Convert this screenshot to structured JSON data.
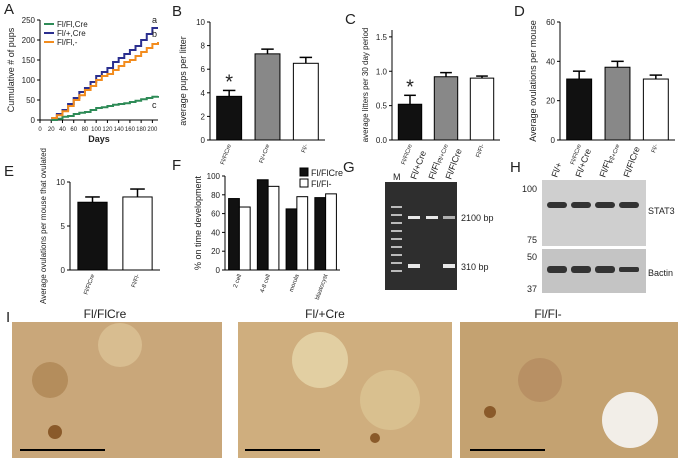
{
  "chart_data": [
    {
      "type": "line",
      "panel_label": "A",
      "x_label": "Days",
      "y_label": "Cumulative # of pups",
      "x": [
        20,
        30,
        40,
        50,
        60,
        70,
        80,
        90,
        100,
        110,
        120,
        130,
        140,
        150,
        160,
        170,
        180,
        190,
        200,
        210
      ],
      "series": [
        {
          "name": "Fl/Fl,Cre",
          "color": "#2e8b57",
          "values": [
            0,
            3,
            8,
            10,
            15,
            18,
            20,
            25,
            30,
            32,
            35,
            38,
            40,
            42,
            45,
            48,
            52,
            55,
            58,
            60
          ]
        },
        {
          "name": "Fl/+,Cre",
          "color": "#2b2f8f",
          "values": [
            5,
            15,
            25,
            40,
            55,
            70,
            80,
            95,
            110,
            120,
            130,
            145,
            155,
            165,
            175,
            185,
            200,
            215,
            230,
            230
          ]
        },
        {
          "name": "Fl/Fl,-",
          "color": "#f28c1e",
          "values": [
            5,
            12,
            22,
            35,
            50,
            62,
            75,
            85,
            100,
            110,
            115,
            125,
            135,
            145,
            150,
            160,
            170,
            180,
            190,
            195
          ]
        }
      ],
      "annotations": [
        "a",
        "b",
        "c"
      ],
      "xlim": [
        0,
        210
      ],
      "xticks": [
        0,
        20,
        40,
        60,
        80,
        100,
        120,
        140,
        160,
        180,
        200
      ],
      "ylim": [
        0,
        250
      ],
      "yticks": [
        0,
        50,
        100,
        150,
        200,
        250
      ],
      "legend": "upper left"
    },
    {
      "type": "bar",
      "panel_label": "B",
      "y_label": "average pups per litter",
      "categories": [
        "Fl/FlCre",
        "Fl/+Cre",
        "Fl/-"
      ],
      "values": [
        3.7,
        7.3,
        6.5
      ],
      "errors": [
        0.5,
        0.4,
        0.5
      ],
      "colors": [
        "#111111",
        "#888888",
        "#ffffff"
      ],
      "annotation": "*",
      "ylim": [
        0,
        10
      ],
      "yticks": [
        0,
        2,
        4,
        6,
        8,
        10
      ]
    },
    {
      "type": "bar",
      "panel_label": "C",
      "y_label": "average litters per 30 day period",
      "categories": [
        "Fl/FlCre",
        "Fl/+Cre",
        "Fl/Fl-"
      ],
      "values": [
        0.52,
        0.92,
        0.9
      ],
      "errors": [
        0.13,
        0.06,
        0.03
      ],
      "colors": [
        "#111111",
        "#888888",
        "#ffffff"
      ],
      "annotation": "*",
      "ylim": [
        0,
        1.6
      ],
      "yticks": [
        {
          "value": 0,
          "label": "0.0"
        },
        {
          "value": 0.5,
          "label": "0.5"
        },
        {
          "value": 1,
          "label": "1.0"
        },
        {
          "value": 1.5,
          "label": "1.5"
        }
      ]
    },
    {
      "type": "bar",
      "panel_label": "D",
      "y_label": "Average ovulations per mouse",
      "categories": [
        "Fl/FlCre",
        "Fl/+Cre",
        "Fl/-"
      ],
      "values": [
        31,
        37,
        31
      ],
      "errors": [
        4,
        3,
        2
      ],
      "colors": [
        "#111111",
        "#888888",
        "#ffffff"
      ],
      "ylim": [
        0,
        60
      ],
      "yticks": [
        0,
        20,
        40,
        60
      ]
    },
    {
      "type": "bar",
      "panel_label": "E",
      "y_label": "Average ovulations per mouse that ovulated",
      "categories": [
        "Fl/FlCre",
        "Fl/Fl-"
      ],
      "values": [
        7.7,
        8.3
      ],
      "errors": [
        0.6,
        0.9
      ],
      "colors": [
        "#111111",
        "#ffffff"
      ],
      "ylim": [
        0,
        10
      ],
      "yticks": [
        0,
        5,
        10
      ]
    },
    {
      "type": "grouped_bar",
      "panel_label": "F",
      "y_label": "% on time development",
      "categories": [
        "2 cell",
        "4-8 cell",
        "morula",
        "blastocyst"
      ],
      "series": [
        {
          "name": "Fl/FlCre",
          "color": "#111111",
          "values": [
            76,
            96,
            65,
            77
          ]
        },
        {
          "name": "Fl/Fl-",
          "color": "#ffffff",
          "values": [
            67,
            89,
            78,
            81
          ]
        }
      ],
      "ylim": [
        0,
        100
      ],
      "yticks": [
        0,
        20,
        40,
        60,
        80,
        100
      ],
      "legend": "upper right"
    }
  ],
  "gel": {
    "panel_label": "G",
    "lanes": [
      "M",
      "Fl/+Cre",
      "Fl/Fl -",
      "Fl/FlCre"
    ],
    "bands": [
      "2100 bp",
      "310 bp"
    ]
  },
  "western": {
    "panel_label": "H",
    "lanes": [
      "Fl/+",
      "Fl/+Cre",
      "Fl/Fl -",
      "Fl/FlCre"
    ],
    "markers": [
      100,
      75,
      50,
      37
    ],
    "proteins": [
      "STAT3",
      "Bactin"
    ]
  },
  "histology": {
    "panel_label": "I",
    "titles": [
      "Fl/FlCre",
      "Fl/+Cre",
      "Fl/Fl-"
    ]
  }
}
